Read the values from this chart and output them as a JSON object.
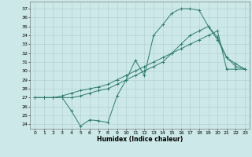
{
  "xlabel": "Humidex (Indice chaleur)",
  "bg_color": "#cce8e8",
  "grid_color": "#b0cccc",
  "line_color": "#2e7d6e",
  "xlim": [
    -0.5,
    23.5
  ],
  "ylim": [
    23.5,
    37.8
  ],
  "xticks": [
    0,
    1,
    2,
    3,
    4,
    5,
    6,
    7,
    8,
    9,
    10,
    11,
    12,
    13,
    14,
    15,
    16,
    17,
    18,
    19,
    20,
    21,
    22,
    23
  ],
  "yticks": [
    24,
    25,
    26,
    27,
    28,
    29,
    30,
    31,
    32,
    33,
    34,
    35,
    36,
    37
  ],
  "line1_x": [
    0,
    1,
    2,
    3,
    4,
    5,
    6,
    7,
    8,
    9,
    10,
    11,
    12,
    13,
    14,
    15,
    16,
    17,
    18,
    19,
    20,
    21,
    22,
    23
  ],
  "line1_y": [
    27,
    27,
    27,
    27,
    25.5,
    23.8,
    24.5,
    24.4,
    24.2,
    27.2,
    29.0,
    31.2,
    29.5,
    34.0,
    35.2,
    36.5,
    37.0,
    37.0,
    36.8,
    35.0,
    33.5,
    31.5,
    30.8,
    30.2
  ],
  "line2_x": [
    0,
    1,
    2,
    3,
    4,
    5,
    6,
    7,
    8,
    9,
    10,
    11,
    12,
    13,
    14,
    15,
    16,
    17,
    18,
    19,
    20,
    21,
    22,
    23
  ],
  "line2_y": [
    27,
    27,
    27,
    27.2,
    27.5,
    27.8,
    28.0,
    28.2,
    28.5,
    29.0,
    29.5,
    30.0,
    30.5,
    31.0,
    31.5,
    32.0,
    32.5,
    33.0,
    33.5,
    34.0,
    34.5,
    30.2,
    30.2,
    30.2
  ],
  "line3_x": [
    0,
    1,
    2,
    3,
    4,
    5,
    6,
    7,
    8,
    9,
    10,
    11,
    12,
    13,
    14,
    15,
    16,
    17,
    18,
    19,
    20,
    21,
    22,
    23
  ],
  "line3_y": [
    27,
    27,
    27,
    27,
    27,
    27.2,
    27.5,
    27.8,
    28.0,
    28.5,
    29.0,
    29.5,
    30.0,
    30.5,
    31.0,
    32.0,
    33.0,
    34.0,
    34.5,
    35.0,
    33.8,
    31.5,
    30.5,
    30.2
  ],
  "xlabel_fontsize": 5.5,
  "tick_fontsize": 4.5
}
